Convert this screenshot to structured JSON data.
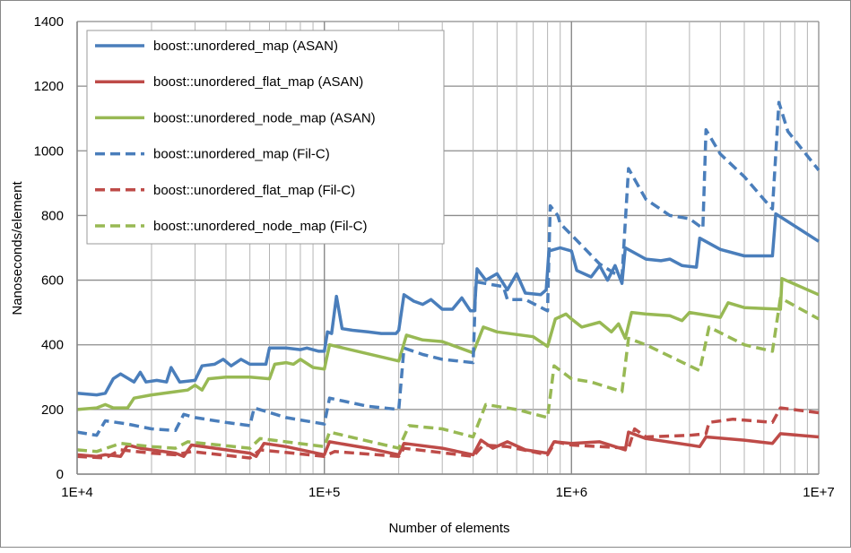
{
  "chart_data": {
    "type": "line",
    "title": "",
    "xlabel": "Number of elements",
    "ylabel": "Nanoseconds/element",
    "xscale": "log",
    "xlim": [
      10000,
      10000000
    ],
    "ylim": [
      0,
      1400
    ],
    "grid": true,
    "legend_position": "top-left",
    "x_tick_labels": [
      "1E+4",
      "1E+5",
      "1E+6",
      "1E+7"
    ],
    "x_tick_values": [
      10000,
      100000,
      1000000,
      10000000
    ],
    "y_tick_labels": [
      "0",
      "200",
      "400",
      "600",
      "800",
      "1000",
      "1200",
      "1400"
    ],
    "y_tick_values": [
      0,
      200,
      400,
      600,
      800,
      1000,
      1200,
      1400
    ],
    "series": [
      {
        "name": "boost::unordered_map (ASAN)",
        "color": "#4a7ebb",
        "dash": "solid",
        "points": [
          [
            10000.0,
            250
          ],
          [
            12000.0,
            245
          ],
          [
            13000.0,
            250
          ],
          [
            14000.0,
            295
          ],
          [
            15000.0,
            310
          ],
          [
            17000.0,
            285
          ],
          [
            18000.0,
            315
          ],
          [
            19000.0,
            285
          ],
          [
            21000.0,
            290
          ],
          [
            23000.0,
            285
          ],
          [
            24000.0,
            330
          ],
          [
            26000.0,
            285
          ],
          [
            30000.0,
            290
          ],
          [
            32000.0,
            335
          ],
          [
            36000.0,
            340
          ],
          [
            39000.0,
            355
          ],
          [
            42000.0,
            335
          ],
          [
            46000.0,
            355
          ],
          [
            50000.0,
            340
          ],
          [
            58000.0,
            340
          ],
          [
            60000.0,
            390
          ],
          [
            70000.0,
            390
          ],
          [
            80000.0,
            385
          ],
          [
            85000.0,
            390
          ],
          [
            95000.0,
            380
          ],
          [
            100000.0,
            380
          ],
          [
            103000.0,
            440
          ],
          [
            107000.0,
            435
          ],
          [
            112000.0,
            550
          ],
          [
            118000.0,
            450
          ],
          [
            130000.0,
            445
          ],
          [
            150000.0,
            440
          ],
          [
            170000.0,
            435
          ],
          [
            195000.0,
            435
          ],
          [
            200000.0,
            445
          ],
          [
            210000.0,
            555
          ],
          [
            230000.0,
            535
          ],
          [
            250000.0,
            525
          ],
          [
            270000.0,
            540
          ],
          [
            300000.0,
            510
          ],
          [
            330000.0,
            510
          ],
          [
            360000.0,
            545
          ],
          [
            390000.0,
            505
          ],
          [
            405000.0,
            505
          ],
          [
            415000.0,
            635
          ],
          [
            450000.0,
            600
          ],
          [
            500000.0,
            620
          ],
          [
            550000.0,
            570
          ],
          [
            600000.0,
            620
          ],
          [
            650000.0,
            560
          ],
          [
            750000.0,
            555
          ],
          [
            790000.0,
            570
          ],
          [
            810000.0,
            690
          ],
          [
            900000.0,
            700
          ],
          [
            1000000.0,
            690
          ],
          [
            1050000.0,
            630
          ],
          [
            1200000.0,
            610
          ],
          [
            1300000.0,
            645
          ],
          [
            1400000.0,
            600
          ],
          [
            1500000.0,
            645
          ],
          [
            1600000.0,
            590
          ],
          [
            1650000.0,
            700
          ],
          [
            2000000.0,
            665
          ],
          [
            2300000.0,
            660
          ],
          [
            2500000.0,
            665
          ],
          [
            2800000.0,
            645
          ],
          [
            3200000.0,
            640
          ],
          [
            3300000.0,
            730
          ],
          [
            4000000.0,
            695
          ],
          [
            5000000.0,
            675
          ],
          [
            6500000.0,
            675
          ],
          [
            6700000.0,
            805
          ],
          [
            10000000.0,
            720
          ]
        ]
      },
      {
        "name": "boost::unordered_flat_map (ASAN)",
        "color": "#be4b48",
        "dash": "solid",
        "points": [
          [
            10000.0,
            60
          ],
          [
            12000.0,
            55
          ],
          [
            13000.0,
            60
          ],
          [
            15000.0,
            55
          ],
          [
            16000.0,
            90
          ],
          [
            18000.0,
            80
          ],
          [
            25000.0,
            65
          ],
          [
            27000.0,
            55
          ],
          [
            29000.0,
            90
          ],
          [
            40000.0,
            75
          ],
          [
            50000.0,
            65
          ],
          [
            53000.0,
            55
          ],
          [
            57000.0,
            95
          ],
          [
            70000.0,
            85
          ],
          [
            100000.0,
            60
          ],
          [
            105000.0,
            100
          ],
          [
            150000.0,
            80
          ],
          [
            200000.0,
            60
          ],
          [
            210000.0,
            95
          ],
          [
            300000.0,
            80
          ],
          [
            400000.0,
            60
          ],
          [
            430000.0,
            105
          ],
          [
            480000.0,
            80
          ],
          [
            550000.0,
            100
          ],
          [
            650000.0,
            75
          ],
          [
            800000.0,
            65
          ],
          [
            850000.0,
            100
          ],
          [
            1000000.0,
            95
          ],
          [
            1300000.0,
            100
          ],
          [
            1500000.0,
            85
          ],
          [
            1650000.0,
            75
          ],
          [
            1700000.0,
            130
          ],
          [
            2000000.0,
            110
          ],
          [
            3000000.0,
            90
          ],
          [
            3300000.0,
            85
          ],
          [
            3500000.0,
            115
          ],
          [
            5000000.0,
            105
          ],
          [
            6500000.0,
            95
          ],
          [
            7000000.0,
            125
          ],
          [
            10000000.0,
            115
          ]
        ]
      },
      {
        "name": "boost::unordered_node_map (ASAN)",
        "color": "#98b954",
        "dash": "solid",
        "points": [
          [
            10000.0,
            200
          ],
          [
            12000.0,
            205
          ],
          [
            13000.0,
            215
          ],
          [
            14000.0,
            205
          ],
          [
            16000.0,
            205
          ],
          [
            17000.0,
            235
          ],
          [
            20000.0,
            245
          ],
          [
            25000.0,
            255
          ],
          [
            28000.0,
            260
          ],
          [
            30000.0,
            275
          ],
          [
            32000.0,
            260
          ],
          [
            34000.0,
            295
          ],
          [
            40000.0,
            300
          ],
          [
            50000.0,
            300
          ],
          [
            60000.0,
            295
          ],
          [
            63000.0,
            340
          ],
          [
            70000.0,
            345
          ],
          [
            75000.0,
            340
          ],
          [
            80000.0,
            355
          ],
          [
            90000.0,
            330
          ],
          [
            100000.0,
            325
          ],
          [
            105000.0,
            400
          ],
          [
            200000.0,
            350
          ],
          [
            215000.0,
            430
          ],
          [
            250000.0,
            415
          ],
          [
            300000.0,
            410
          ],
          [
            400000.0,
            375
          ],
          [
            440000.0,
            455
          ],
          [
            500000.0,
            440
          ],
          [
            700000.0,
            425
          ],
          [
            800000.0,
            395
          ],
          [
            860000.0,
            480
          ],
          [
            950000.0,
            495
          ],
          [
            1000000.0,
            480
          ],
          [
            1100000.0,
            455
          ],
          [
            1300000.0,
            470
          ],
          [
            1450000.0,
            440
          ],
          [
            1550000.0,
            465
          ],
          [
            1650000.0,
            420
          ],
          [
            1750000.0,
            500
          ],
          [
            2000000.0,
            495
          ],
          [
            2500000.0,
            490
          ],
          [
            2800000.0,
            475
          ],
          [
            3000000.0,
            500
          ],
          [
            4000000.0,
            485
          ],
          [
            4300000.0,
            530
          ],
          [
            5000000.0,
            515
          ],
          [
            7000000.0,
            510
          ],
          [
            7100000.0,
            605
          ],
          [
            10000000.0,
            555
          ]
        ]
      },
      {
        "name": "boost::unordered_map (Fil-C)",
        "color": "#4a7ebb",
        "dash": "dashed",
        "points": [
          [
            10000.0,
            130
          ],
          [
            12000.0,
            120
          ],
          [
            13000.0,
            165
          ],
          [
            16000.0,
            155
          ],
          [
            20000.0,
            140
          ],
          [
            25000.0,
            135
          ],
          [
            27000.0,
            185
          ],
          [
            30000.0,
            175
          ],
          [
            40000.0,
            160
          ],
          [
            50000.0,
            150
          ],
          [
            52000.0,
            205
          ],
          [
            70000.0,
            175
          ],
          [
            100000.0,
            155
          ],
          [
            105000.0,
            235
          ],
          [
            150000.0,
            210
          ],
          [
            200000.0,
            200
          ],
          [
            210000.0,
            390
          ],
          [
            250000.0,
            370
          ],
          [
            300000.0,
            355
          ],
          [
            400000.0,
            345
          ],
          [
            410000.0,
            595
          ],
          [
            530000.0,
            580
          ],
          [
            550000.0,
            540
          ],
          [
            650000.0,
            540
          ],
          [
            800000.0,
            505
          ],
          [
            820000.0,
            830
          ],
          [
            880000.0,
            800
          ],
          [
            900000.0,
            775
          ],
          [
            1000000.0,
            740
          ],
          [
            1300000.0,
            650
          ],
          [
            1500000.0,
            620
          ],
          [
            1600000.0,
            610
          ],
          [
            1700000.0,
            945
          ],
          [
            2000000.0,
            850
          ],
          [
            2500000.0,
            800
          ],
          [
            3000000.0,
            790
          ],
          [
            3400000.0,
            760
          ],
          [
            3500000.0,
            1065
          ],
          [
            4000000.0,
            990
          ],
          [
            5000000.0,
            920
          ],
          [
            6000000.0,
            850
          ],
          [
            6500000.0,
            820
          ],
          [
            6900000.0,
            1150
          ],
          [
            7500000.0,
            1060
          ],
          [
            10000000.0,
            940
          ]
        ]
      },
      {
        "name": "boost::unordered_flat_map (Fil-C)",
        "color": "#be4b48",
        "dash": "dashed",
        "points": [
          [
            10000.0,
            55
          ],
          [
            13000.0,
            50
          ],
          [
            15000.0,
            75
          ],
          [
            20000.0,
            65
          ],
          [
            25000.0,
            60
          ],
          [
            29000.0,
            70
          ],
          [
            50000.0,
            50
          ],
          [
            55000.0,
            75
          ],
          [
            100000.0,
            55
          ],
          [
            110000.0,
            70
          ],
          [
            200000.0,
            55
          ],
          [
            210000.0,
            80
          ],
          [
            400000.0,
            55
          ],
          [
            440000.0,
            90
          ],
          [
            550000.0,
            85
          ],
          [
            800000.0,
            60
          ],
          [
            860000.0,
            100
          ],
          [
            1000000.0,
            90
          ],
          [
            1700000.0,
            80
          ],
          [
            1800000.0,
            140
          ],
          [
            2000000.0,
            115
          ],
          [
            3000000.0,
            120
          ],
          [
            3500000.0,
            125
          ],
          [
            3600000.0,
            160
          ],
          [
            4500000.0,
            170
          ],
          [
            6500000.0,
            160
          ],
          [
            7000000.0,
            205
          ],
          [
            10000000.0,
            190
          ]
        ]
      },
      {
        "name": "boost::unordered_node_map (Fil-C)",
        "color": "#98b954",
        "dash": "dashed",
        "points": [
          [
            10000.0,
            75
          ],
          [
            12000.0,
            70
          ],
          [
            15000.0,
            95
          ],
          [
            20000.0,
            85
          ],
          [
            25000.0,
            80
          ],
          [
            28000.0,
            100
          ],
          [
            50000.0,
            80
          ],
          [
            55000.0,
            110
          ],
          [
            100000.0,
            85
          ],
          [
            105000.0,
            130
          ],
          [
            200000.0,
            80
          ],
          [
            220000.0,
            150
          ],
          [
            300000.0,
            140
          ],
          [
            400000.0,
            115
          ],
          [
            450000.0,
            215
          ],
          [
            600000.0,
            200
          ],
          [
            800000.0,
            175
          ],
          [
            850000.0,
            335
          ],
          [
            1000000.0,
            295
          ],
          [
            1200000.0,
            285
          ],
          [
            1600000.0,
            255
          ],
          [
            1700000.0,
            420
          ],
          [
            2000000.0,
            400
          ],
          [
            3300000.0,
            320
          ],
          [
            3600000.0,
            455
          ],
          [
            5000000.0,
            400
          ],
          [
            6500000.0,
            380
          ],
          [
            7000000.0,
            545
          ],
          [
            10000000.0,
            480
          ]
        ]
      }
    ]
  }
}
